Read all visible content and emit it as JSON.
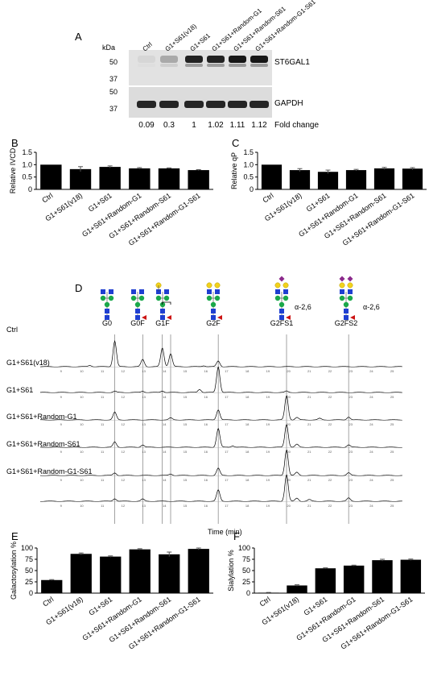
{
  "panel_letters": {
    "a": "A",
    "b": "B",
    "c": "C",
    "d": "D",
    "e": "E",
    "f": "F"
  },
  "conditions": [
    "Ctrl",
    "G1+S61(v18)",
    "G1+S61",
    "G1+S61+Random-G1",
    "G1+S61+Random-S61",
    "G1+S61+Random-G1-S61"
  ],
  "western": {
    "kda_label": "kDa",
    "st6_markers": [
      "50",
      "37"
    ],
    "gapdh_markers": [
      "50",
      "37"
    ],
    "st6_label": "ST6GAL1",
    "gapdh_label": "GAPDH",
    "fold_values": [
      "0.09",
      "0.3",
      "1",
      "1.02",
      "1.11",
      "1.12"
    ],
    "fold_label": "Fold change",
    "band_intensity": [
      0.05,
      0.25,
      0.85,
      0.85,
      0.9,
      0.9
    ]
  },
  "chromatogram": {
    "glycans": [
      "G0",
      "G0F",
      "G1F",
      "G2F",
      "G2FS1",
      "G2FS2"
    ],
    "linkage_label": "α-2,6",
    "xlabel": "Time (min)",
    "ticks": [
      "9",
      "10",
      "11",
      "12",
      "13",
      "14",
      "15",
      "16",
      "17",
      "18",
      "19",
      "20",
      "21",
      "22",
      "23",
      "24",
      "25"
    ],
    "reference_lines": [
      11.6,
      12.95,
      13.9,
      14.3,
      16.6,
      19.9,
      22.9
    ],
    "traces": [
      {
        "label": "Ctrl",
        "peaks": [
          [
            11.6,
            1.0
          ],
          [
            12.95,
            0.28
          ],
          [
            13.9,
            0.72
          ],
          [
            14.3,
            0.5
          ],
          [
            16.6,
            0.22
          ],
          [
            10.4,
            0.05
          ],
          [
            15.9,
            0.04
          ]
        ]
      },
      {
        "label": "G1+S61(v18)",
        "peaks": [
          [
            16.6,
            1.0
          ],
          [
            11.6,
            0.05
          ],
          [
            12.95,
            0.05
          ],
          [
            13.9,
            0.06
          ],
          [
            15.7,
            0.12
          ],
          [
            19.9,
            0.05
          ]
        ]
      },
      {
        "label": "G1+S61",
        "peaks": [
          [
            11.6,
            0.32
          ],
          [
            16.6,
            0.42
          ],
          [
            19.9,
            1.0
          ],
          [
            22.9,
            0.12
          ],
          [
            14.3,
            0.08
          ],
          [
            20.4,
            0.1
          ],
          [
            21.5,
            0.06
          ]
        ]
      },
      {
        "label": "G1+S61+Random-G1",
        "peaks": [
          [
            11.6,
            0.22
          ],
          [
            12.95,
            0.1
          ],
          [
            16.6,
            0.78
          ],
          [
            19.9,
            0.95
          ],
          [
            22.9,
            0.1
          ],
          [
            20.4,
            0.12
          ],
          [
            17.3,
            0.06
          ]
        ]
      },
      {
        "label": "G1+S61+Random-S61",
        "peaks": [
          [
            11.6,
            0.1
          ],
          [
            16.6,
            0.28
          ],
          [
            19.9,
            1.0
          ],
          [
            22.9,
            0.1
          ],
          [
            20.4,
            0.12
          ],
          [
            14.3,
            0.06
          ]
        ]
      },
      {
        "label": "G1+S61+Random-G1-S61",
        "peaks": [
          [
            11.6,
            0.1
          ],
          [
            12.95,
            0.08
          ],
          [
            16.6,
            0.42
          ],
          [
            19.9,
            1.0
          ],
          [
            22.9,
            0.12
          ],
          [
            20.4,
            0.12
          ],
          [
            21.0,
            0.06
          ]
        ]
      }
    ]
  },
  "chart_data": [
    {
      "type": "bar",
      "panel": "B",
      "ylabel": "Relative IVCD",
      "categories": [
        "Ctrl",
        "G1+S61(v18)",
        "G1+S61",
        "G1+S61+Random-G1",
        "G1+S61+Random-S61",
        "G1+S61+Random-G1-S61"
      ],
      "values": [
        1.0,
        0.82,
        0.91,
        0.85,
        0.85,
        0.78
      ],
      "errors": [
        0.0,
        0.1,
        0.04,
        0.03,
        0.02,
        0.02
      ],
      "ylim": [
        0,
        1.5
      ],
      "yticks": [
        "0",
        "0.5",
        "1.0",
        "1.5"
      ]
    },
    {
      "type": "bar",
      "panel": "C",
      "ylabel": "Relative qP",
      "categories": [
        "Ctrl",
        "G1+S61(v18)",
        "G1+S61",
        "G1+S61+Random-G1",
        "G1+S61+Random-S61",
        "G1+S61+Random-G1-S61"
      ],
      "values": [
        1.0,
        0.78,
        0.71,
        0.78,
        0.85,
        0.84
      ],
      "errors": [
        0.0,
        0.06,
        0.07,
        0.03,
        0.04,
        0.04
      ],
      "ylim": [
        0,
        1.5
      ],
      "yticks": [
        "0",
        "0.5",
        "1.0",
        "1.5"
      ]
    },
    {
      "type": "bar",
      "panel": "E",
      "ylabel": "Galactosylation %",
      "categories": [
        "Ctrl",
        "G1+S61(v18)",
        "G1+S61",
        "G1+S61+Random-G1",
        "G1+S61+Random-S61",
        "G1+S61+Random-G1-S61"
      ],
      "values": [
        29,
        87,
        81,
        97,
        86,
        98
      ],
      "errors": [
        1,
        2,
        1.5,
        1.5,
        5,
        2
      ],
      "ylim": [
        0,
        100
      ],
      "yticks": [
        "0",
        "25",
        "50",
        "75",
        "100"
      ]
    },
    {
      "type": "bar",
      "panel": "F",
      "ylabel": "Sialylation %",
      "categories": [
        "Ctrl",
        "G1+S61(v18)",
        "G1+S61",
        "G1+S61+Random-G1",
        "G1+S61+Random-S61",
        "G1+S61+Random-G1-S61"
      ],
      "values": [
        1,
        17,
        55,
        61,
        73,
        74
      ],
      "errors": [
        0.5,
        1.5,
        1,
        1,
        2,
        1.5
      ],
      "ylim": [
        0,
        100
      ],
      "yticks": [
        "0",
        "25",
        "50",
        "75",
        "100"
      ]
    }
  ]
}
